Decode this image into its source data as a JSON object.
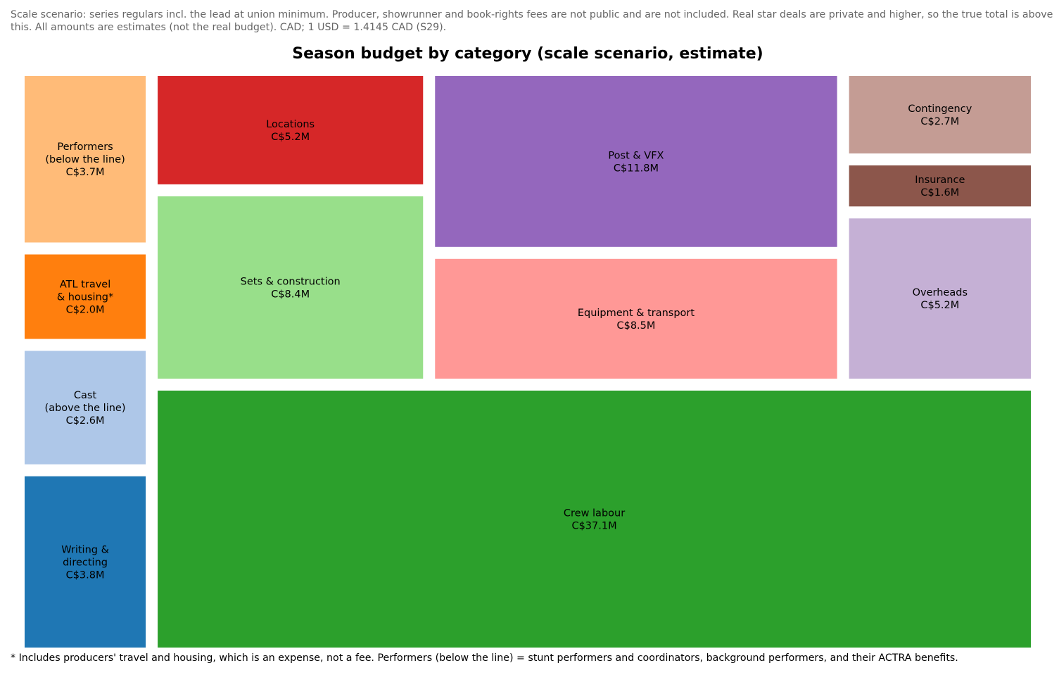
{
  "note_top": "Scale scenario: series regulars incl. the lead at union minimum. Producer, showrunner and book-rights fees are not public and are not included. Real star deals are private and higher, so the true total is above this. All amounts are estimates (not the real budget). CAD; 1 USD = 1.4145 CAD (S29).",
  "note_bottom": "* Includes producers' travel and housing, which is an expense, not a fee. Performers (below the line) = stunt performers and coordinators, background performers, and their ACTRA benefits.",
  "chart_data": {
    "type": "treemap",
    "title": "Season budget by category (scale scenario, estimate)",
    "unit": "C$M",
    "items": [
      {
        "name": "Writing &\ndirecting",
        "value": 3.8,
        "value_label": "C$3.8M",
        "color": "#1f77b4"
      },
      {
        "name": "Cast\n(above the line)",
        "value": 2.6,
        "value_label": "C$2.6M",
        "color": "#aec7e8"
      },
      {
        "name": "ATL travel\n& housing*",
        "value": 2.0,
        "value_label": "C$2.0M",
        "color": "#ff7f0e"
      },
      {
        "name": "Performers\n(below the line)",
        "value": 3.7,
        "value_label": "C$3.7M",
        "color": "#ffbb78"
      },
      {
        "name": "Crew labour",
        "value": 37.1,
        "value_label": "C$37.1M",
        "color": "#2ca02c"
      },
      {
        "name": "Sets & construction",
        "value": 8.4,
        "value_label": "C$8.4M",
        "color": "#98df8a"
      },
      {
        "name": "Locations",
        "value": 5.2,
        "value_label": "C$5.2M",
        "color": "#d62728"
      },
      {
        "name": "Equipment & transport",
        "value": 8.5,
        "value_label": "C$8.5M",
        "color": "#ff9896"
      },
      {
        "name": "Post & VFX",
        "value": 11.8,
        "value_label": "C$11.8M",
        "color": "#9467bd"
      },
      {
        "name": "Overheads",
        "value": 5.2,
        "value_label": "C$5.2M",
        "color": "#c5b0d5"
      },
      {
        "name": "Insurance",
        "value": 1.6,
        "value_label": "C$1.6M",
        "color": "#8c564b"
      },
      {
        "name": "Contingency",
        "value": 2.7,
        "value_label": "C$2.7M",
        "color": "#c49c94"
      }
    ]
  }
}
